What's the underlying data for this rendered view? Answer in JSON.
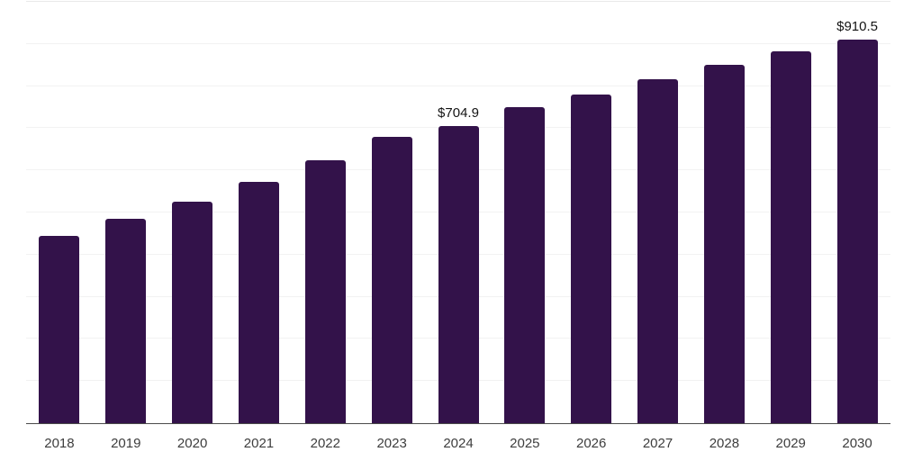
{
  "chart_data": {
    "type": "bar",
    "title": "",
    "xlabel": "",
    "ylabel": "",
    "legend": "none",
    "grid": "horizontal",
    "categories": [
      "2018",
      "2019",
      "2020",
      "2021",
      "2022",
      "2023",
      "2024",
      "2025",
      "2026",
      "2027",
      "2028",
      "2029",
      "2030"
    ],
    "values": [
      444,
      485,
      525,
      572,
      623,
      679,
      704.9,
      749,
      781,
      816,
      851,
      883,
      910.5
    ],
    "data_labels": {
      "2024": "$704.9",
      "2030": "$910.5"
    },
    "ylim": [
      0,
      1000
    ],
    "grid_step": 100,
    "bar_color": "#33124a",
    "grid_color": "#f2f2f2",
    "top_grid_color": "#e9e9e9",
    "axis_line_color": "#4a4a4a",
    "tick_label_color": "#3d3d3d",
    "value_label_color": "#141414",
    "background_color": "#ffffff"
  }
}
